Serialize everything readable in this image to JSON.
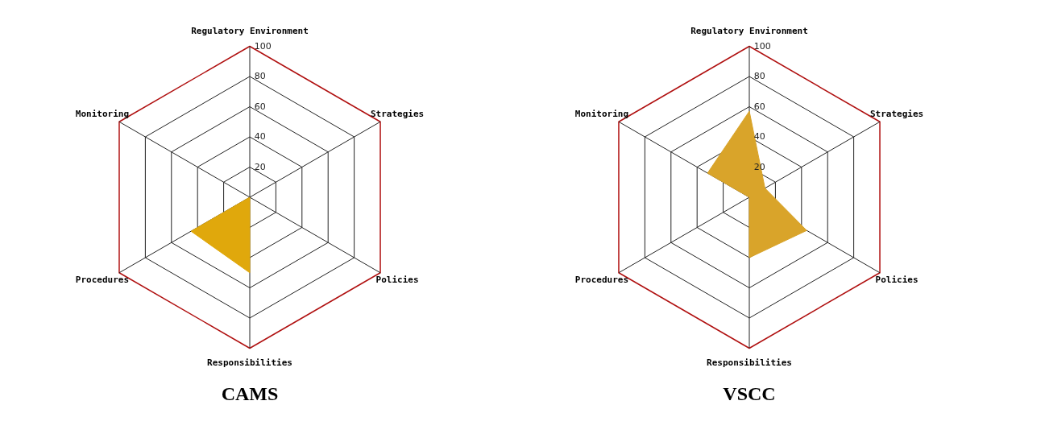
{
  "chart_data": [
    {
      "type": "radar",
      "title": "CAMS",
      "categories": [
        "Regulatory Environment",
        "Strategies",
        "Policies",
        "Responsibilities",
        "Procedures",
        "Monitoring"
      ],
      "ylim": [
        0,
        100
      ],
      "yticks": [
        20,
        40,
        60,
        80,
        100
      ],
      "grid": true,
      "series": [
        {
          "color": "#e0a80c",
          "values": [
            0,
            0,
            0,
            50,
            45,
            0
          ]
        }
      ]
    },
    {
      "type": "radar",
      "title": "VSCC",
      "categories": [
        "Regulatory Environment",
        "Strategies",
        "Policies",
        "Responsibilities",
        "Procedures",
        "Monitoring"
      ],
      "ylim": [
        0,
        100
      ],
      "yticks": [
        20,
        40,
        60,
        80,
        100
      ],
      "grid": true,
      "series": [
        {
          "color": "#d9a42a",
          "values": [
            57,
            12,
            44,
            40,
            0,
            32
          ]
        }
      ]
    }
  ]
}
